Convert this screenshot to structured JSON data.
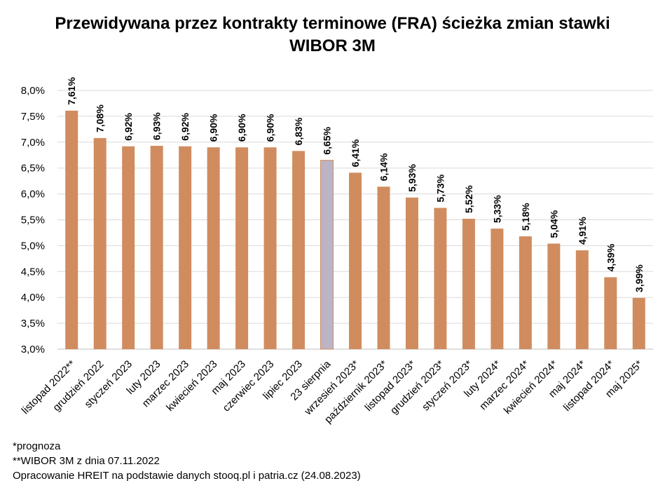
{
  "title": {
    "line1": "Przewidywana przez kontrakty terminowe (FRA) ścieżka zmian stawki",
    "line2": "WIBOR 3M"
  },
  "notes": {
    "note1": "*prognoza",
    "note2": "**WIBOR 3M z dnia 07.11.2022",
    "source": "Opracowanie HREIT na podstawie danych stooq.pl i patria.cz (24.08.2023)"
  },
  "colors": {
    "bar": "#d08c5f",
    "highlight": "#bcb4c4",
    "grid": "#d9d9d9",
    "axis": "#bfbfbf"
  },
  "chart_data": {
    "type": "bar",
    "categories": [
      "listopad 2022**",
      "grudzień 2022",
      "styczeń 2023",
      "luty 2023",
      "marzec 2023",
      "kwiecień 2023",
      "maj 2023",
      "czerwiec 2023",
      "lipiec 2023",
      "23 sierpnia",
      "wrzesień 2023*",
      "październik 2023*",
      "listopad 2023*",
      "grudzień 2023*",
      "styczeń 2023*",
      "luty 2024*",
      "marzec 2024*",
      "kwiecień 2024*",
      "maj 2024*",
      "listopad 2024*",
      "maj 2025*"
    ],
    "values": [
      7.61,
      7.08,
      6.92,
      6.93,
      6.92,
      6.9,
      6.9,
      6.9,
      6.83,
      6.65,
      6.41,
      6.14,
      5.93,
      5.73,
      5.52,
      5.33,
      5.18,
      5.04,
      4.91,
      4.39,
      3.99
    ],
    "data_labels": [
      "7,61%",
      "7,08%",
      "6,92%",
      "6,93%",
      "6,92%",
      "6,90%",
      "6,90%",
      "6,90%",
      "6,83%",
      "6,65%",
      "6,41%",
      "6,14%",
      "5,93%",
      "5,73%",
      "5,52%",
      "5,33%",
      "5,18%",
      "5,04%",
      "4,91%",
      "4,39%",
      "3,99%"
    ],
    "highlight_index": 9,
    "ylim": [
      3.0,
      8.0
    ],
    "yticks": [
      3.0,
      3.5,
      4.0,
      4.5,
      5.0,
      5.5,
      6.0,
      6.5,
      7.0,
      7.5,
      8.0
    ],
    "ytick_labels": [
      "3,0%",
      "3,5%",
      "4,0%",
      "4,5%",
      "5,0%",
      "5,5%",
      "6,0%",
      "6,5%",
      "7,0%",
      "7,5%",
      "8,0%"
    ],
    "grid": true,
    "legend": "none"
  }
}
